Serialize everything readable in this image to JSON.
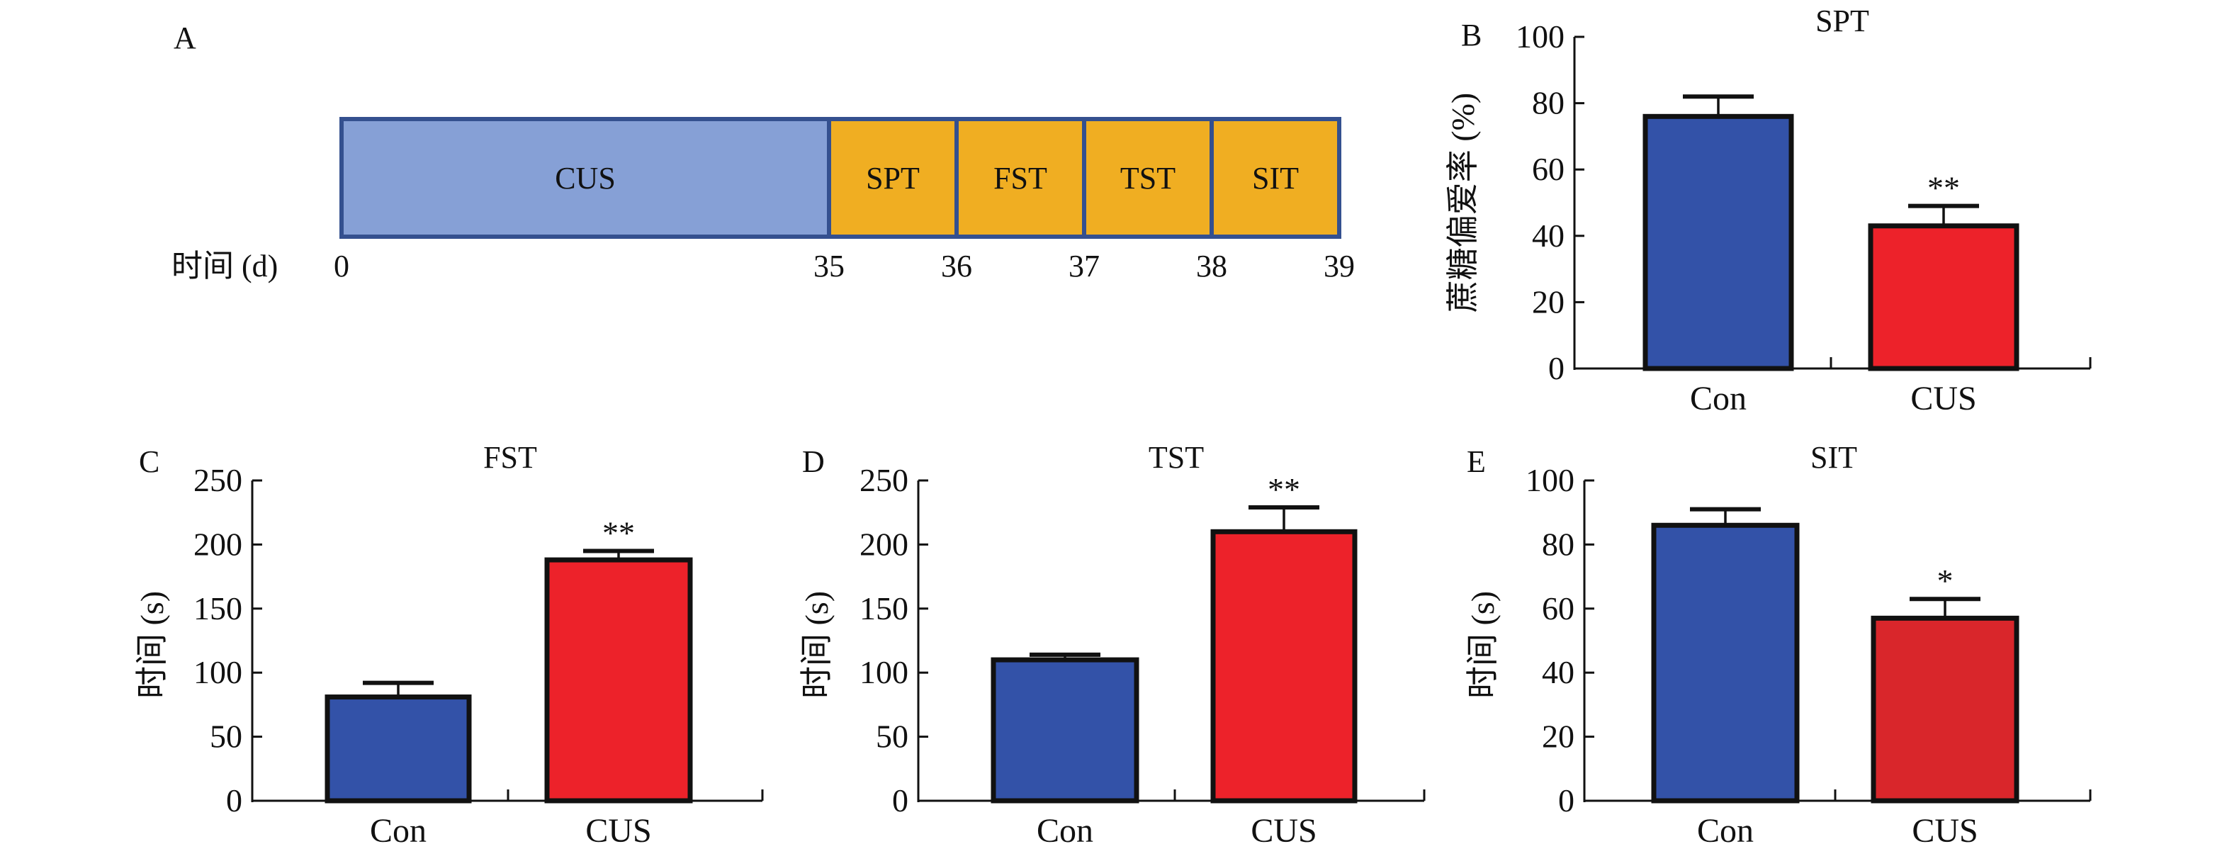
{
  "colors": {
    "cus_phase": "#86a0d6",
    "test_phase": "#f0ae22",
    "timeline_border": "#34508f",
    "con_bar": "#3352a8",
    "cus_bar": "#ed222a",
    "cus_bar_sit": "#d9262b",
    "axis": "#111111"
  },
  "chart_data": [
    {
      "id": "A",
      "type": "timeline",
      "panel_label": "A",
      "axis_label": "时间 (d)",
      "ticks": [
        0,
        35,
        36,
        37,
        38,
        39
      ],
      "phases": [
        {
          "label": "CUS",
          "start": 0,
          "end": 35,
          "kind": "cus"
        },
        {
          "label": "SPT",
          "start": 35,
          "end": 36,
          "kind": "test"
        },
        {
          "label": "FST",
          "start": 36,
          "end": 37,
          "kind": "test"
        },
        {
          "label": "TST",
          "start": 37,
          "end": 38,
          "kind": "test"
        },
        {
          "label": "SIT",
          "start": 38,
          "end": 39,
          "kind": "test"
        }
      ]
    },
    {
      "id": "B",
      "type": "bar",
      "panel_label": "B",
      "title": "SPT",
      "ylabel": "蔗糖偏爱率 (%)",
      "xlabel": "",
      "ylim": [
        0,
        100
      ],
      "yticks": [
        0,
        20,
        40,
        60,
        80,
        100
      ],
      "categories": [
        "Con",
        "CUS"
      ],
      "values": [
        76,
        43
      ],
      "errors": [
        6,
        6
      ],
      "significance": [
        "",
        "**"
      ],
      "grid": false
    },
    {
      "id": "C",
      "type": "bar",
      "panel_label": "C",
      "title": "FST",
      "ylabel": "时间 (s)",
      "xlabel": "",
      "ylim": [
        0,
        250
      ],
      "yticks": [
        0,
        50,
        100,
        150,
        200,
        250
      ],
      "categories": [
        "Con",
        "CUS"
      ],
      "values": [
        81,
        188
      ],
      "errors": [
        11,
        7
      ],
      "significance": [
        "",
        "**"
      ],
      "grid": false
    },
    {
      "id": "D",
      "type": "bar",
      "panel_label": "D",
      "title": "TST",
      "ylabel": "时间 (s)",
      "xlabel": "",
      "ylim": [
        0,
        250
      ],
      "yticks": [
        0,
        50,
        100,
        150,
        200,
        250
      ],
      "categories": [
        "Con",
        "CUS"
      ],
      "values": [
        110,
        210
      ],
      "errors": [
        4,
        19
      ],
      "significance": [
        "",
        "**"
      ],
      "grid": false
    },
    {
      "id": "E",
      "type": "bar",
      "panel_label": "E",
      "title": "SIT",
      "ylabel": "时间 (s)",
      "xlabel": "",
      "ylim": [
        0,
        100
      ],
      "yticks": [
        0,
        20,
        40,
        60,
        80,
        100
      ],
      "categories": [
        "Con",
        "CUS"
      ],
      "values": [
        86,
        57
      ],
      "errors": [
        5,
        6
      ],
      "significance": [
        "",
        "*"
      ],
      "grid": false
    }
  ]
}
